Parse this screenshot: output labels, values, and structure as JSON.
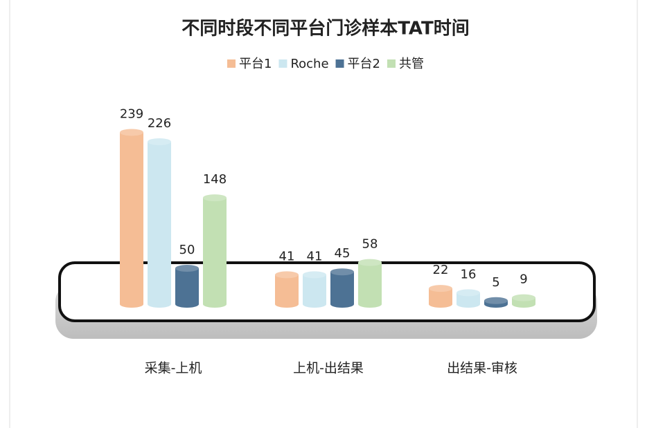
{
  "chart_data": {
    "type": "bar",
    "title": "不同时段不同平台门诊样本TAT时间",
    "categories": [
      "采集-上机",
      "上机-出结果",
      "出结果-审核"
    ],
    "series": [
      {
        "name": "平台1",
        "color": "#f5bd95",
        "values": [
          239,
          41,
          22
        ]
      },
      {
        "name": "Roche",
        "color": "#cce7f0",
        "values": [
          226,
          41,
          16
        ]
      },
      {
        "name": "平台2",
        "color": "#4d7294",
        "values": [
          50,
          45,
          5
        ]
      },
      {
        "name": "共管",
        "color": "#c2e0b3",
        "values": [
          148,
          58,
          9
        ]
      }
    ]
  }
}
